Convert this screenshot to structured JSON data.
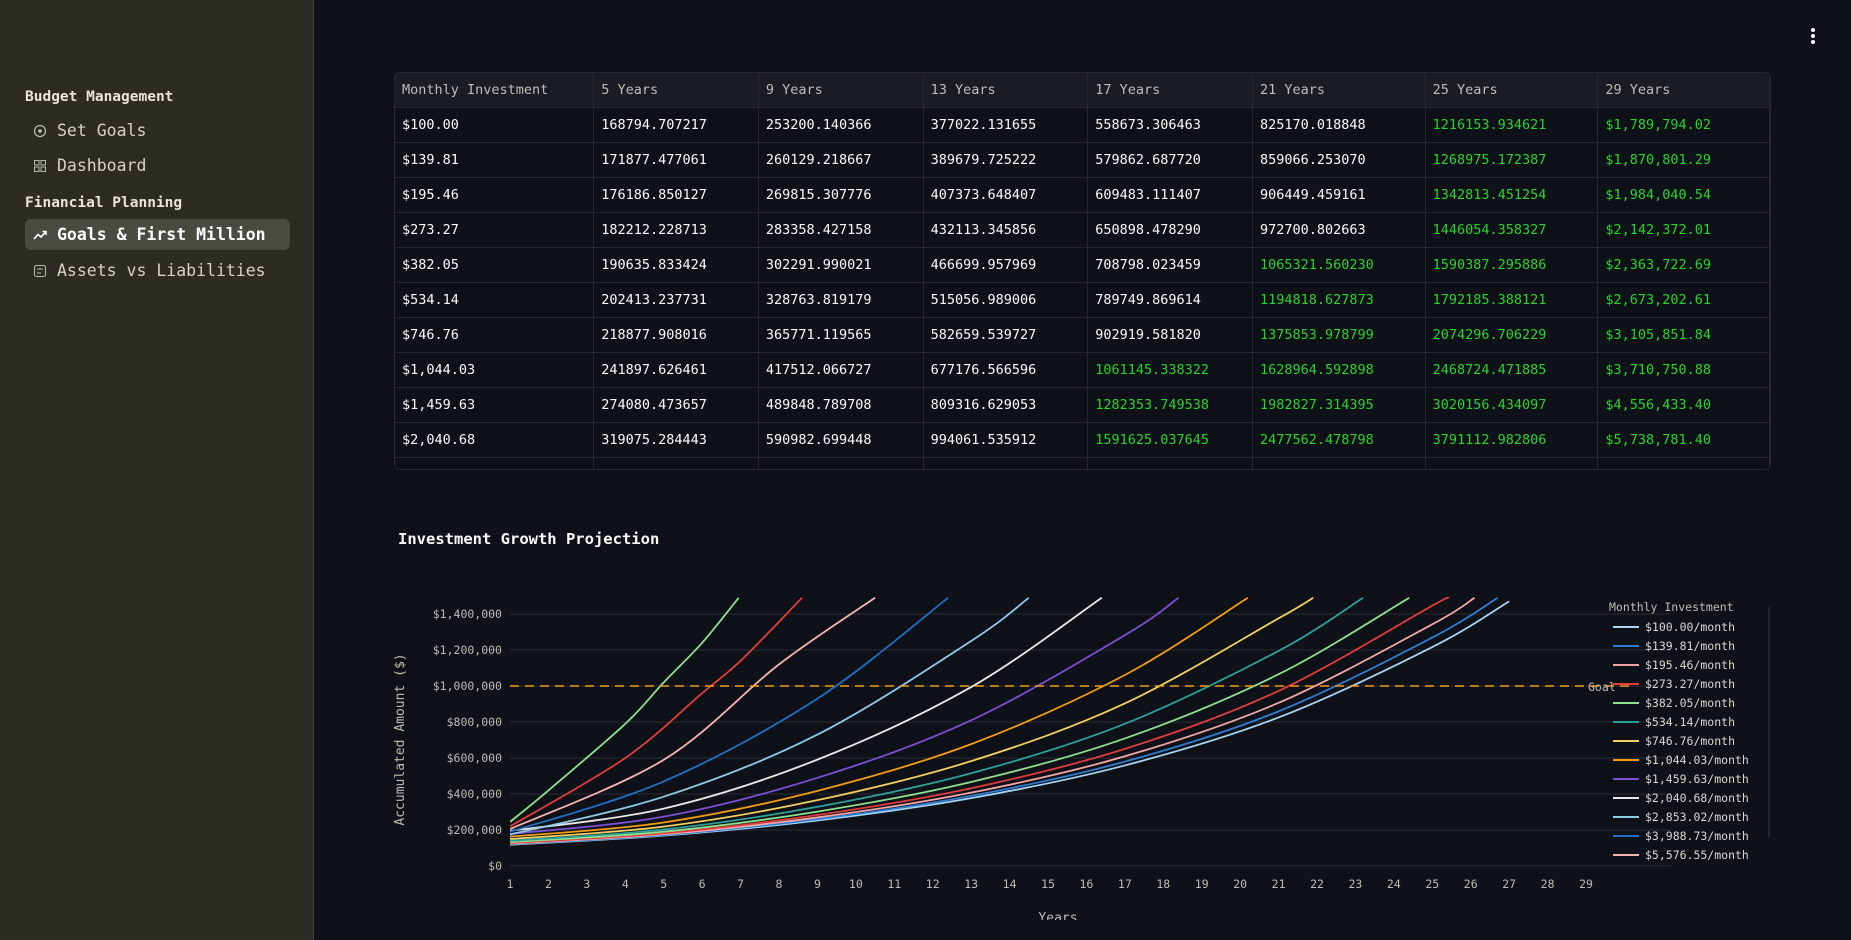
{
  "sidebar": {
    "sections": [
      {
        "title": "Budget Management",
        "items": [
          {
            "label": "Set Goals",
            "icon": "target-icon"
          },
          {
            "label": "Dashboard",
            "icon": "grid-icon"
          }
        ]
      },
      {
        "title": "Financial Planning",
        "items": [
          {
            "label": "Goals & First Million",
            "icon": "trending-up-icon",
            "active": true
          },
          {
            "label": "Assets vs Liabilities",
            "icon": "balance-icon"
          }
        ]
      }
    ]
  },
  "table": {
    "headers": [
      "Monthly Investment",
      "5 Years",
      "9 Years",
      "13 Years",
      "17 Years",
      "21 Years",
      "25 Years",
      "29 Years"
    ],
    "rows": [
      [
        "$100.00",
        "168794.707217",
        "253200.140366",
        "377022.131655",
        "558673.306463",
        "825170.018848",
        "1216153.934621",
        "$1,789,794.02"
      ],
      [
        "$139.81",
        "171877.477061",
        "260129.218667",
        "389679.725222",
        "579862.687720",
        "859066.253070",
        "1268975.172387",
        "$1,870,801.29"
      ],
      [
        "$195.46",
        "176186.850127",
        "269815.307776",
        "407373.648407",
        "609483.111407",
        "906449.459161",
        "1342813.451254",
        "$1,984,040.54"
      ],
      [
        "$273.27",
        "182212.228713",
        "283358.427158",
        "432113.345856",
        "650898.478290",
        "972700.802663",
        "1446054.358327",
        "$2,142,372.01"
      ],
      [
        "$382.05",
        "190635.833424",
        "302291.990021",
        "466699.957969",
        "708798.023459",
        "1065321.560230",
        "1590387.295886",
        "$2,363,722.69"
      ],
      [
        "$534.14",
        "202413.237731",
        "328763.819179",
        "515056.989006",
        "789749.869614",
        "1194818.627873",
        "1792185.388121",
        "$2,673,202.61"
      ],
      [
        "$746.76",
        "218877.908016",
        "365771.119565",
        "582659.539727",
        "902919.581820",
        "1375853.978799",
        "2074296.706229",
        "$3,105,851.84"
      ],
      [
        "$1,044.03",
        "241897.626461",
        "417512.066727",
        "677176.566596",
        "1061145.338322",
        "1628964.592898",
        "2468724.471885",
        "$3,710,750.88"
      ],
      [
        "$1,459.63",
        "274080.473657",
        "489848.789708",
        "809316.629053",
        "1282353.749538",
        "1982827.314395",
        "3020156.434097",
        "$4,556,433.40"
      ],
      [
        "$2,040.68",
        "319075.284443",
        "590982.699448",
        "994061.535912",
        "1591625.037645",
        "2477562.478798",
        "3791112.982806",
        "$5,738,781.40"
      ]
    ],
    "goal": 1000000
  },
  "chart_data": {
    "type": "line",
    "title": "Investment Growth Projection",
    "xlabel": "Years",
    "ylabel": "Accumulated Amount ($)",
    "x": [
      1,
      2,
      3,
      4,
      5,
      6,
      7,
      8,
      9,
      10,
      11,
      12,
      13,
      14,
      15,
      16,
      17,
      18,
      19,
      20,
      21,
      22,
      23,
      24,
      25,
      26,
      27,
      28,
      29
    ],
    "xlim": [
      1,
      29
    ],
    "ylim": [
      0,
      1400000
    ],
    "yticks": [
      0,
      200000,
      400000,
      600000,
      800000,
      1000000,
      1200000,
      1400000
    ],
    "ytick_labels": [
      "$0",
      "$200,000",
      "$400,000",
      "$600,000",
      "$800,000",
      "$1,000,000",
      "$1,200,000",
      "$1,400,000"
    ],
    "goal_line": {
      "value": 1000000,
      "label": "Goal",
      "color": "#f39c12"
    },
    "legend_title": "Monthly Investment",
    "legend_position": "right",
    "grid": true,
    "series": [
      {
        "name": "$100.00/month",
        "color": "#a8d5f5",
        "points": [
          [
            1,
            118000
          ],
          [
            5,
            168795
          ],
          [
            9,
            253200
          ],
          [
            13,
            377022
          ],
          [
            17,
            558673
          ],
          [
            21,
            825170
          ],
          [
            25,
            1216154
          ],
          [
            27,
            1470000
          ]
        ]
      },
      {
        "name": "$139.81/month",
        "color": "#2d7dd2",
        "points": [
          [
            1,
            121000
          ],
          [
            5,
            171877
          ],
          [
            9,
            260129
          ],
          [
            13,
            389680
          ],
          [
            17,
            579863
          ],
          [
            21,
            859066
          ],
          [
            25,
            1268975
          ],
          [
            26.7,
            1490000
          ]
        ]
      },
      {
        "name": "$195.46/month",
        "color": "#f4a6a6",
        "points": [
          [
            1,
            124000
          ],
          [
            5,
            176187
          ],
          [
            9,
            269815
          ],
          [
            13,
            407374
          ],
          [
            17,
            609483
          ],
          [
            21,
            906449
          ],
          [
            25,
            1342813
          ],
          [
            26.1,
            1490000
          ]
        ]
      },
      {
        "name": "$273.27/month",
        "color": "#e03c3c",
        "points": [
          [
            1,
            128000
          ],
          [
            5,
            182212
          ],
          [
            9,
            283358
          ],
          [
            13,
            432113
          ],
          [
            17,
            650898
          ],
          [
            21,
            972701
          ],
          [
            25,
            1446054
          ],
          [
            25.4,
            1490000
          ]
        ]
      },
      {
        "name": "$382.05/month",
        "color": "#8ee08e",
        "points": [
          [
            1,
            133000
          ],
          [
            5,
            190636
          ],
          [
            9,
            302292
          ],
          [
            13,
            466700
          ],
          [
            17,
            708798
          ],
          [
            21,
            1065322
          ],
          [
            24.4,
            1490000
          ]
        ]
      },
      {
        "name": "$534.14/month",
        "color": "#2aa198",
        "points": [
          [
            1,
            140000
          ],
          [
            5,
            202413
          ],
          [
            9,
            328764
          ],
          [
            13,
            515057
          ],
          [
            17,
            789750
          ],
          [
            21,
            1194819
          ],
          [
            23.2,
            1490000
          ]
        ]
      },
      {
        "name": "$746.76/month",
        "color": "#f0d060",
        "points": [
          [
            1,
            150000
          ],
          [
            5,
            218878
          ],
          [
            9,
            365771
          ],
          [
            13,
            582660
          ],
          [
            17,
            902920
          ],
          [
            21,
            1375854
          ],
          [
            21.9,
            1490000
          ]
        ]
      },
      {
        "name": "$1,044.03/month",
        "color": "#f39c12",
        "points": [
          [
            1,
            163000
          ],
          [
            5,
            241898
          ],
          [
            9,
            417512
          ],
          [
            13,
            677177
          ],
          [
            17,
            1061145
          ],
          [
            20.2,
            1490000
          ]
        ]
      },
      {
        "name": "$1,459.63/month",
        "color": "#7b4fd6",
        "points": [
          [
            1,
            178000
          ],
          [
            5,
            274080
          ],
          [
            9,
            489849
          ],
          [
            13,
            809317
          ],
          [
            17,
            1282354
          ],
          [
            18.4,
            1490000
          ]
        ]
      },
      {
        "name": "$2,040.68/month",
        "color": "#e8e8e8",
        "points": [
          [
            1,
            195000
          ],
          [
            5,
            319075
          ],
          [
            9,
            590983
          ],
          [
            13,
            994062
          ],
          [
            16.4,
            1490000
          ]
        ]
      },
      {
        "name": "$2,853.02/month",
        "color": "#8ecae6",
        "points": [
          [
            1,
            175000
          ],
          [
            5,
            385000
          ],
          [
            9,
            730000
          ],
          [
            13,
            1250000
          ],
          [
            14.5,
            1490000
          ]
        ]
      },
      {
        "name": "$3,988.73/month",
        "color": "#1f6fc5",
        "points": [
          [
            1,
            190000
          ],
          [
            5,
            470000
          ],
          [
            9,
            930000
          ],
          [
            12.4,
            1490000
          ]
        ]
      },
      {
        "name": "$5,576.55/month",
        "color": "#f7b2b2",
        "points": [
          [
            1,
            205000
          ],
          [
            5,
            590000
          ],
          [
            8,
            1120000
          ],
          [
            10.5,
            1490000
          ]
        ]
      },
      {
        "name": "",
        "color": "#e03c3c",
        "points": [
          [
            1,
            220000
          ],
          [
            4,
            600000
          ],
          [
            6,
            960000
          ],
          [
            7,
            1140000
          ],
          [
            8.6,
            1490000
          ]
        ]
      },
      {
        "name": "",
        "color": "#8ee08e",
        "points": [
          [
            1,
            245000
          ],
          [
            2,
            420000
          ],
          [
            4,
            790000
          ],
          [
            5,
            1020000
          ],
          [
            6,
            1240000
          ],
          [
            6.95,
            1490000
          ]
        ]
      }
    ]
  }
}
